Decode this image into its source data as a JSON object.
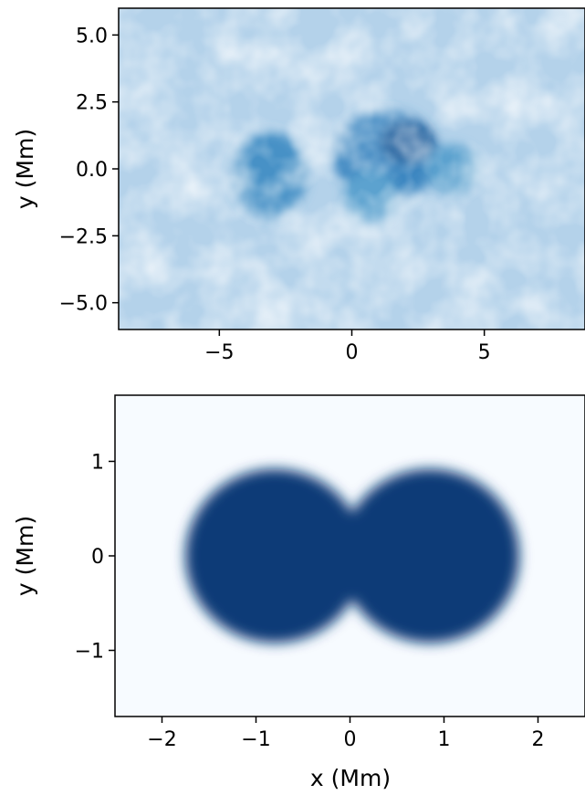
{
  "chart_data": [
    {
      "type": "heatmap",
      "title": "",
      "xlabel": "",
      "ylabel": "y (Mm)",
      "xlim": [
        -8.8,
        8.8
      ],
      "ylim": [
        -6.0,
        6.0
      ],
      "xticks": [
        -5,
        0,
        5
      ],
      "xtick_labels": [
        "−5",
        "0",
        "5"
      ],
      "yticks": [
        5.0,
        2.5,
        0.0,
        -2.5,
        -5.0
      ],
      "ytick_labels": [
        "5.0",
        "2.5",
        "0.0",
        "−2.5",
        "−5.0"
      ],
      "colormap": [
        "#f7fbff",
        "#c6dbef",
        "#6baed6",
        "#2171b5",
        "#08306b"
      ],
      "background_level": 0.3,
      "blobs": [
        {
          "x": -3.1,
          "y": -0.2,
          "rx": 1.4,
          "ry": 1.6,
          "level": 0.62
        },
        {
          "x": 1.3,
          "y": 0.5,
          "rx": 2.0,
          "ry": 1.7,
          "level": 0.66
        },
        {
          "x": 2.1,
          "y": 1.0,
          "rx": 1.0,
          "ry": 0.8,
          "level": 0.85
        },
        {
          "x": 0.7,
          "y": -1.0,
          "rx": 1.0,
          "ry": 1.0,
          "level": 0.55
        },
        {
          "x": 3.8,
          "y": 0.0,
          "rx": 1.0,
          "ry": 0.9,
          "level": 0.55
        }
      ]
    },
    {
      "type": "heatmap",
      "title": "",
      "xlabel": "x (Mm)",
      "ylabel": "y (Mm)",
      "xlim": [
        -2.5,
        2.5
      ],
      "ylim": [
        -1.7,
        1.7
      ],
      "xticks": [
        -2,
        -1,
        0,
        1,
        2
      ],
      "xtick_labels": [
        "−2",
        "−1",
        "0",
        "1",
        "2"
      ],
      "yticks": [
        1,
        0,
        -1
      ],
      "ytick_labels": [
        "1",
        "0",
        "−1"
      ],
      "colormap": [
        "#f7fbff",
        "#c6dbef",
        "#6baed6",
        "#2171b5",
        "#08306b"
      ],
      "background_level": 0.0,
      "blobs": [
        {
          "x": -0.8,
          "y": 0.0,
          "rx": 0.95,
          "ry": 0.92,
          "level": 0.96
        },
        {
          "x": 0.85,
          "y": 0.0,
          "rx": 0.95,
          "ry": 0.92,
          "level": 0.96
        }
      ]
    }
  ]
}
